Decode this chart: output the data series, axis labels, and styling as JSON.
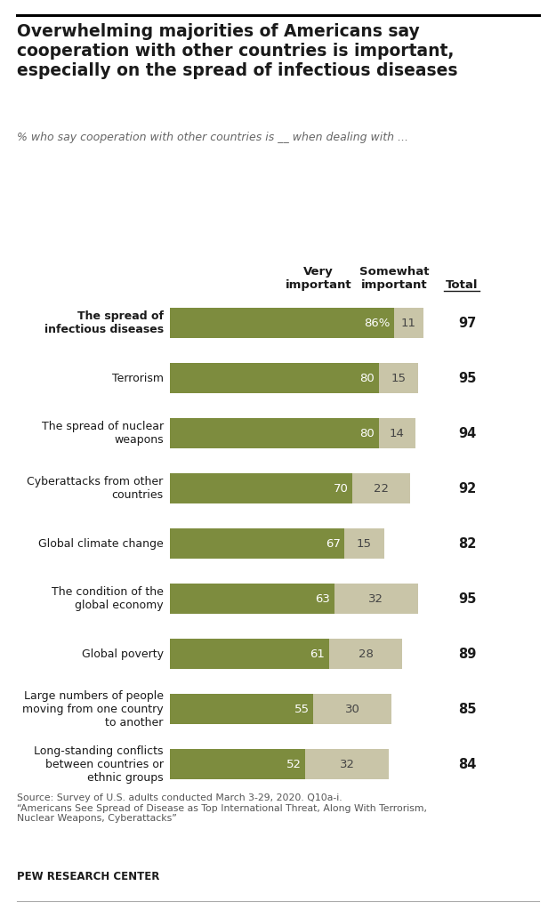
{
  "title": "Overwhelming majorities of Americans say\ncooperation with other countries is important,\nespecially on the spread of infectious diseases",
  "subtitle": "% who say cooperation with other countries is __ when dealing with ...",
  "col_header_very": "Very\nimportant",
  "col_header_somewhat": "Somewhat\nimportant",
  "col_header_total": "Total",
  "categories": [
    "The spread of\ninfectious diseases",
    "Terrorism",
    "The spread of nuclear\nweapons",
    "Cyberattacks from other\ncountries",
    "Global climate change",
    "The condition of the\nglobal economy",
    "Global poverty",
    "Large numbers of people\nmoving from one country\nto another",
    "Long-standing conflicts\nbetween countries or\nethnic groups"
  ],
  "bold_categories": [
    0
  ],
  "very_important": [
    86,
    80,
    80,
    70,
    67,
    63,
    61,
    55,
    52
  ],
  "somewhat_important": [
    11,
    15,
    14,
    22,
    15,
    32,
    28,
    30,
    32
  ],
  "totals": [
    97,
    95,
    94,
    92,
    82,
    95,
    89,
    85,
    84
  ],
  "very_color": "#7d8c3e",
  "somewhat_color": "#c9c5a8",
  "bar_height": 0.55,
  "very_label_color": "#ffffff",
  "somewhat_label_color": "#444444",
  "total_color": "#1a1a1a",
  "source_text": "Source: Survey of U.S. adults conducted March 3-29, 2020. Q10a-i.\n“Americans See Spread of Disease as Top International Threat, Along With Terrorism,\nNuclear Weapons, Cyberattacks”",
  "pew_text": "PEW RESEARCH CENTER",
  "background_color": "#ffffff",
  "text_color": "#333333"
}
